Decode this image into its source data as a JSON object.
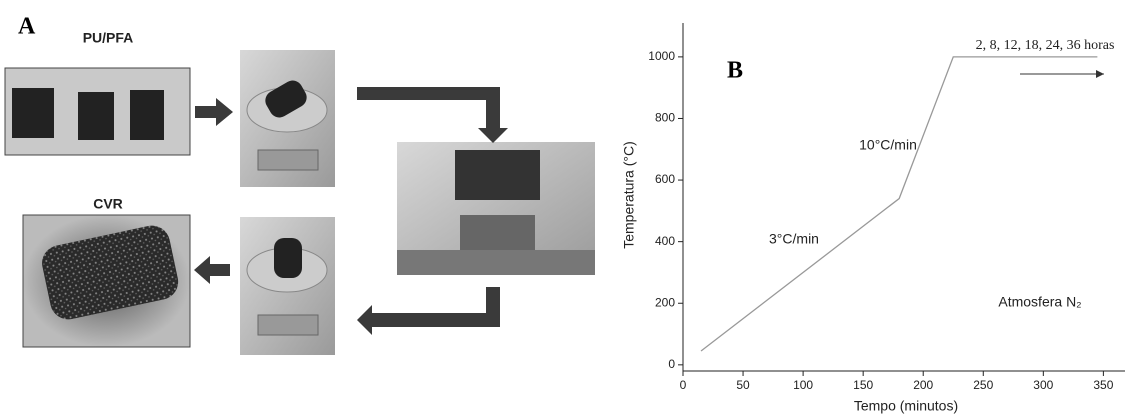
{
  "panel_a": {
    "label": "A",
    "top_sample": "PU/PFA",
    "bottom_sample": "CVR"
  },
  "chart_data": {
    "type": "line",
    "panel_label": "B",
    "x_label": "Tempo (minutos)",
    "y_label": "Temperatura (°C)",
    "annotations": [
      "10°C/min",
      "3°C/min",
      "Atmosfera N₂",
      "2, 8, 12, 18, 24, 36 horas"
    ],
    "x": [
      15,
      180,
      225,
      345
    ],
    "values": [
      45,
      540,
      1000,
      1000
    ],
    "color": "#999999",
    "xlim": [
      0,
      368
    ],
    "xticks": [
      0,
      50,
      100,
      150,
      200,
      250,
      300,
      350
    ],
    "ylim": [
      -20,
      1110
    ],
    "yticks": [
      0,
      200,
      400,
      600,
      800,
      1000
    ],
    "grid": false
  }
}
